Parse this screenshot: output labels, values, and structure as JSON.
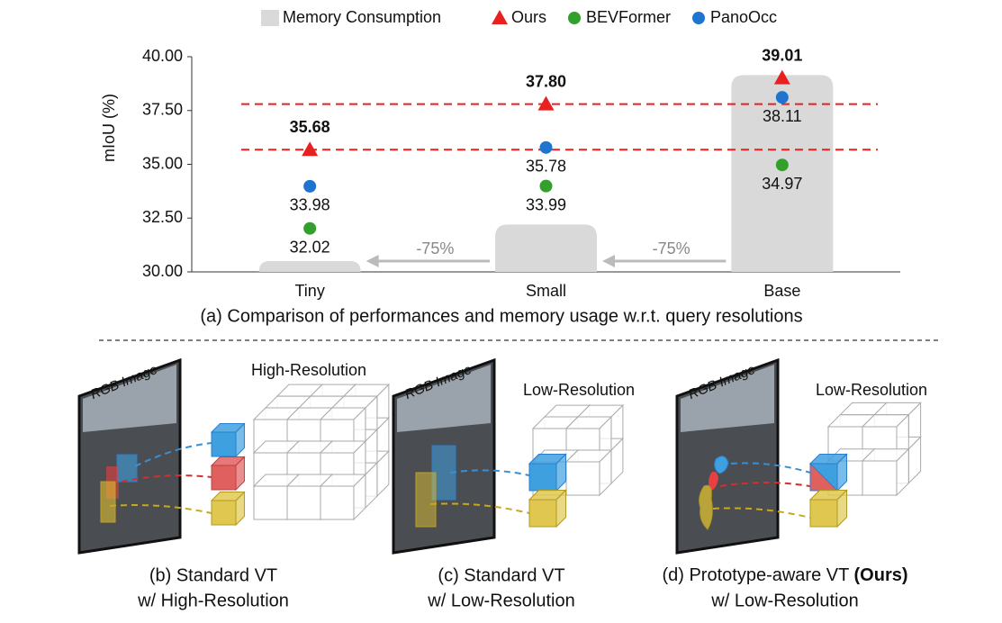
{
  "chart_data": {
    "type": "scatter",
    "legend": "top",
    "y_label": "mIoU (%)",
    "caption": "(a) Comparison of performances and memory usage w.r.t. query resolutions",
    "categories": [
      "Tiny",
      "Small",
      "Base"
    ],
    "ylim": [
      30,
      40
    ],
    "yticks": [
      {
        "value": 30,
        "label": "30.00"
      },
      {
        "value": 32.5,
        "label": "32.50"
      },
      {
        "value": 35,
        "label": "35.00"
      },
      {
        "value": 37.5,
        "label": "37.50"
      },
      {
        "value": 40,
        "label": "40.00"
      }
    ],
    "memory": {
      "name": "Memory Consumption",
      "color": "#d9d9d9",
      "values": [
        30.5,
        32.2,
        39.15
      ]
    },
    "series": [
      {
        "name": "Ours",
        "color": "#e8201f",
        "marker": "triangle",
        "values": [
          35.68,
          37.8,
          39.01
        ],
        "value_labels": [
          "35.68",
          "37.80",
          "39.01"
        ]
      },
      {
        "name": "BEVFormer",
        "color": "#34a02c",
        "marker": "circle",
        "values": [
          32.02,
          33.99,
          34.97
        ],
        "value_labels": [
          "32.02",
          "33.99",
          "34.97"
        ]
      },
      {
        "name": "PanoOcc",
        "color": "#1f74d0",
        "marker": "circle",
        "values": [
          33.98,
          35.78,
          38.11
        ],
        "value_labels": [
          "33.98",
          "35.78",
          "38.11"
        ]
      }
    ],
    "annotations": [
      {
        "text": "-75%"
      },
      {
        "text": "-75%"
      }
    ]
  },
  "panels": [
    {
      "image_label": "RGB Image",
      "grid_label": "High-Resolution",
      "caption": [
        "(b) Standard VT",
        "w/ High-Resolution"
      ]
    },
    {
      "image_label": "RGB Image",
      "grid_label": "Low-Resolution",
      "caption": [
        "(c) Standard VT",
        "w/ Low-Resolution"
      ]
    },
    {
      "image_label": "RGB Image",
      "grid_label": "Low-Resolution",
      "caption_bold": "(Ours)",
      "caption": [
        "(d) Prototype-aware VT ",
        "w/ Low-Resolution"
      ]
    }
  ]
}
